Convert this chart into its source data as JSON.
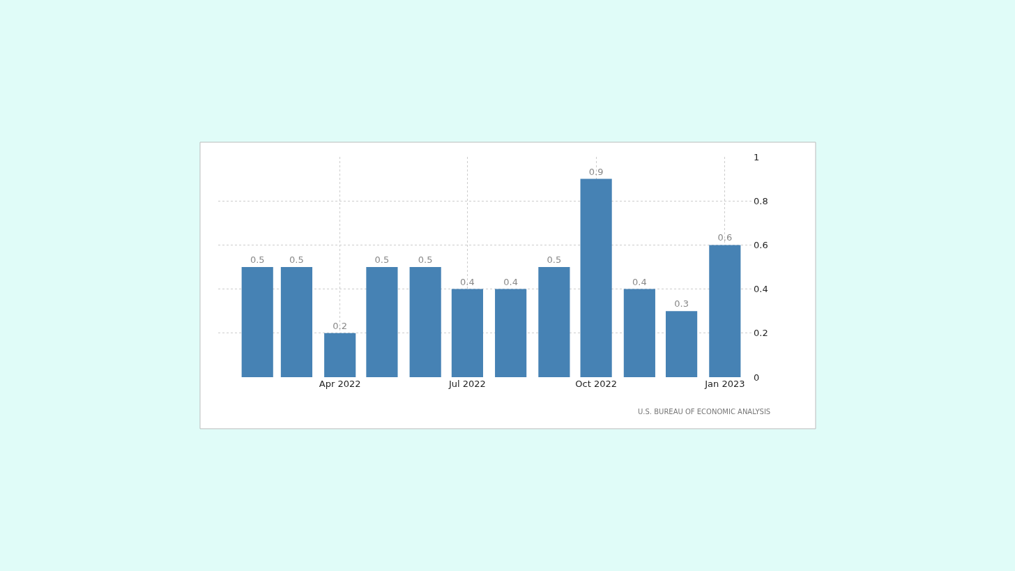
{
  "chart_data": {
    "type": "bar",
    "x": [
      "2022-02",
      "2022-03",
      "2022-04",
      "2022-05",
      "2022-06",
      "2022-07",
      "2022-08",
      "2022-09",
      "2022-10",
      "2022-11",
      "2022-12",
      "2023-01"
    ],
    "values": [
      0.5,
      0.5,
      0.2,
      0.5,
      0.5,
      0.4,
      0.4,
      0.5,
      0.9,
      0.4,
      0.3,
      0.6
    ],
    "color": "#4682b4",
    "data_labels": true,
    "xlim": [
      "2022-01-04",
      "2023-01-21"
    ],
    "xticks": [
      {
        "value": "2022-04",
        "label": "Apr 2022"
      },
      {
        "value": "2022-07",
        "label": "Jul 2022"
      },
      {
        "value": "2022-10",
        "label": "Oct 2022"
      },
      {
        "value": "2023-01",
        "label": "Jan 2023"
      }
    ],
    "ylim": [
      0,
      1
    ],
    "yticks": [
      0,
      0.2,
      0.4,
      0.6,
      0.8,
      1
    ],
    "grid": true,
    "annotations": [
      "U.S. BUREAU OF ECONOMIC ANALYSIS"
    ]
  }
}
